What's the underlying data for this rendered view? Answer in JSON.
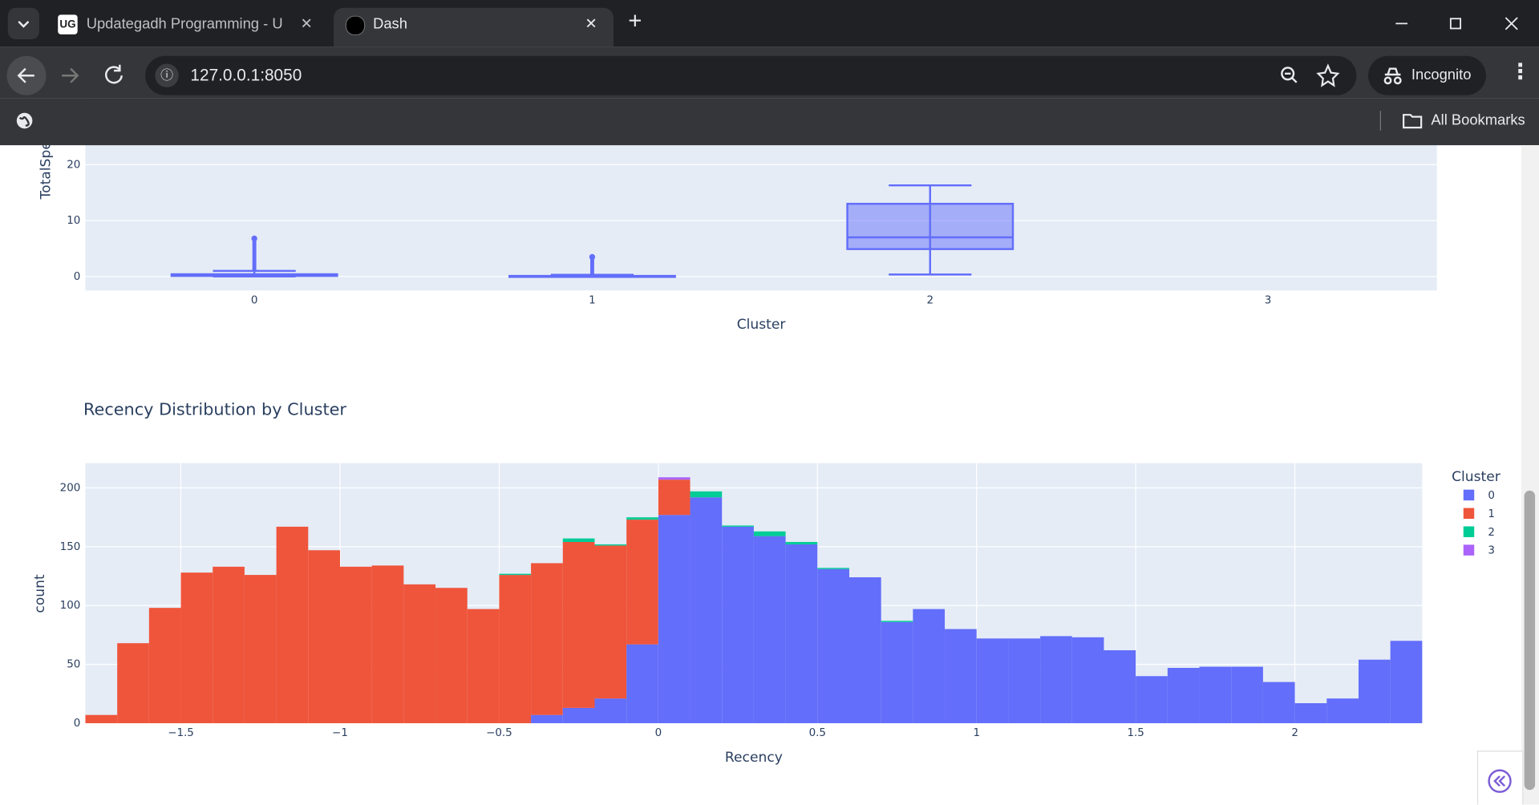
{
  "browser": {
    "tabs": [
      "Updategadh Programming - Up",
      "Dash"
    ],
    "url": "127.0.0.1:8050",
    "profile": "Incognito",
    "bookmarks": "All Bookmarks"
  },
  "chart_data": [
    {
      "type": "box",
      "y_label": "TotalSpe",
      "x_label": "Cluster",
      "categories": [
        "0",
        "1",
        "2",
        "3"
      ],
      "color": "#636efa",
      "boxes": [
        {
          "min": 0,
          "q1": 0.1,
          "median": 0.2,
          "q3": 0.4,
          "max": 1,
          "outlier_max": 6.8
        },
        {
          "min": 0,
          "q1": 0,
          "median": 0.05,
          "q3": 0.1,
          "max": 0.3,
          "outlier_max": 3.5
        },
        {
          "min": 0.35,
          "q1": 4.9,
          "median": 7,
          "q3": 13,
          "max": 16.3,
          "outlier_max": null
        },
        null
      ],
      "ylim": [
        -2.5,
        23.3
      ],
      "yticks": [
        0,
        10,
        20
      ],
      "grid": true
    },
    {
      "type": "histogram",
      "title": "Recency Distribution by Cluster",
      "x_label": "Recency",
      "y_label": "count",
      "legend_title": "Cluster",
      "legend": "right",
      "bins": [
        -1.8,
        -1.7,
        -1.6,
        -1.5,
        -1.4,
        -1.3,
        -1.2,
        -1.1,
        -1,
        -0.9,
        -0.8,
        -0.7,
        -0.6,
        -0.5,
        -0.4,
        -0.3,
        -0.2,
        -0.1,
        0,
        0.1,
        0.2,
        0.3,
        0.4,
        0.5,
        0.6,
        0.7,
        0.8,
        0.9,
        1,
        1.1,
        1.2,
        1.3,
        1.4,
        1.5,
        1.6,
        1.7,
        1.8,
        1.9,
        2,
        2.1,
        2.2,
        2.3,
        2.4
      ],
      "series": [
        {
          "name": "0",
          "color": "#636efa",
          "values": [
            0,
            0,
            0,
            0,
            0,
            0,
            0,
            0,
            0,
            0,
            0,
            0,
            0,
            0,
            7,
            13,
            21,
            67,
            177,
            192,
            167,
            159,
            152,
            131,
            124,
            86,
            97,
            80,
            72,
            72,
            74,
            73,
            62,
            40,
            47,
            48,
            48,
            35,
            17,
            21,
            54,
            70
          ]
        },
        {
          "name": "1",
          "color": "#ef553b",
          "values": [
            7,
            68,
            98,
            128,
            133,
            126,
            167,
            147,
            133,
            134,
            118,
            115,
            97,
            126,
            129,
            141,
            130,
            106,
            30,
            0,
            0,
            0,
            0,
            0,
            0,
            0,
            0,
            0,
            0,
            0,
            0,
            0,
            0,
            0,
            0,
            0,
            0,
            0,
            0,
            0,
            0,
            0
          ]
        },
        {
          "name": "2",
          "color": "#00cc96",
          "values": [
            0,
            0,
            0,
            0,
            0,
            0,
            0,
            0,
            0,
            0,
            0,
            0,
            0,
            1,
            0,
            3,
            1,
            2,
            0,
            5,
            1,
            4,
            2,
            1,
            0,
            1,
            0,
            0,
            0,
            0,
            0,
            0,
            0,
            0,
            0,
            0,
            0,
            0,
            0,
            0,
            0,
            0
          ]
        },
        {
          "name": "3",
          "color": "#ab63fa",
          "values": [
            0,
            0,
            0,
            0,
            0,
            0,
            0,
            0,
            0,
            0,
            0,
            0,
            0,
            0,
            0,
            0,
            0,
            0,
            2,
            0,
            0,
            0,
            0,
            0,
            0,
            0,
            0,
            0,
            0,
            0,
            0,
            0,
            0,
            0,
            0,
            0,
            0,
            0,
            0,
            0,
            0,
            0
          ]
        }
      ],
      "xlim": [
        -1.8,
        2.4
      ],
      "ylim": [
        0,
        221
      ],
      "xticks": [
        {
          "value": -1.5,
          "label": "−1.5"
        },
        {
          "value": -1,
          "label": "−1"
        },
        {
          "value": -0.5,
          "label": "−0.5"
        },
        0,
        0.5,
        1,
        1.5,
        2
      ],
      "yticks": [
        0,
        50,
        100,
        150,
        200
      ],
      "grid": true
    }
  ]
}
